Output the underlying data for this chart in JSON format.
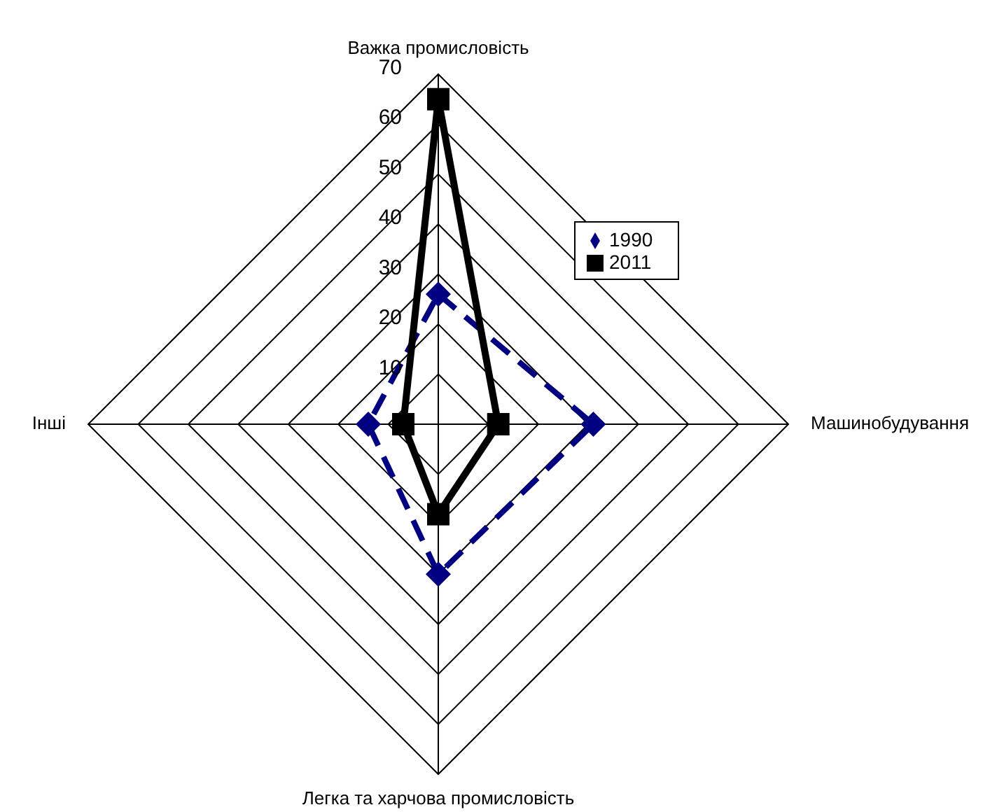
{
  "chart_data": {
    "type": "radar",
    "categories": [
      "Важка промисловість",
      "Машинобудування",
      "Легка та харчова промисловість",
      "Інші"
    ],
    "series": [
      {
        "name": "1990",
        "color": "#000080",
        "values": [
          26,
          31,
          30,
          14
        ],
        "marker": "diamond",
        "line_style": "dashed"
      },
      {
        "name": "2011",
        "color": "#000000",
        "values": [
          65,
          12,
          18,
          7
        ],
        "marker": "square",
        "line_style": "solid"
      }
    ],
    "ylim": [
      0,
      70
    ],
    "yticks": [
      10,
      20,
      30,
      40,
      50,
      60,
      70
    ],
    "grid": true,
    "legend": "top right"
  }
}
